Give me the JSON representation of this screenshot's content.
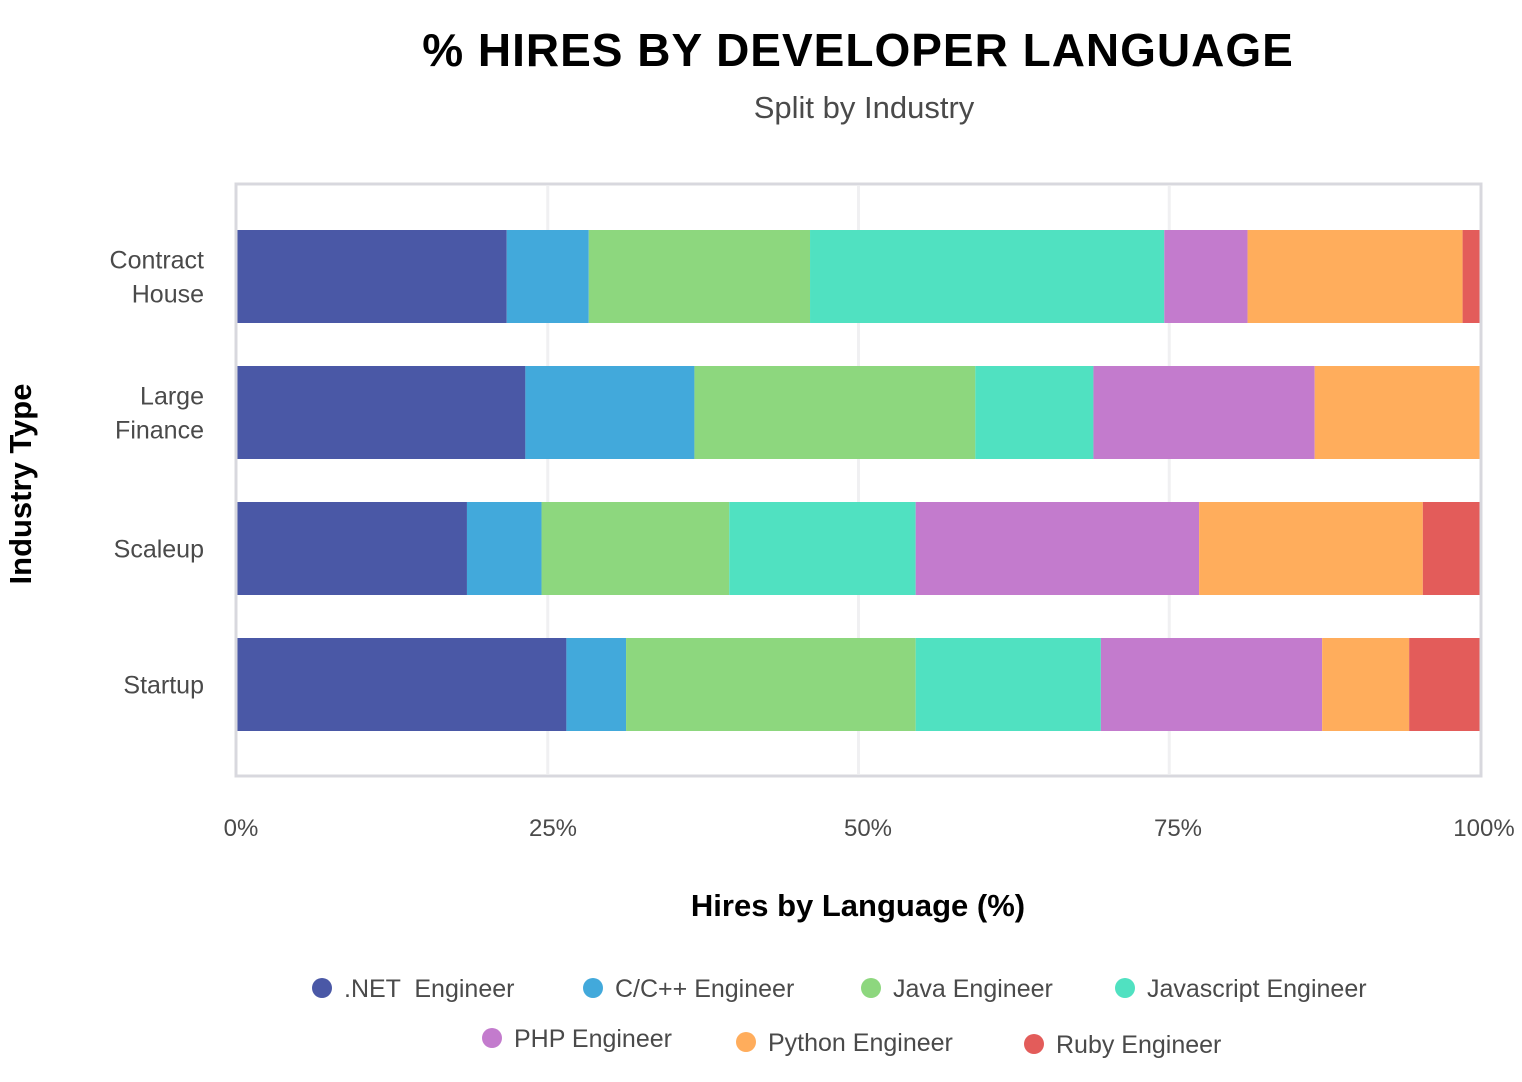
{
  "chart_data": {
    "type": "bar",
    "orientation": "horizontal",
    "stacked": true,
    "title": "% HIRES BY DEVELOPER LANGUAGE",
    "subtitle": "Split by Industry",
    "xlabel": "Hires by Language (%)",
    "ylabel": "Industry Type",
    "xlim": [
      0,
      100
    ],
    "x_ticks": [
      "0%",
      "25%",
      "50%",
      "75%",
      "100%"
    ],
    "categories": [
      [
        "Contract",
        "House"
      ],
      [
        "Large",
        "Finance"
      ],
      [
        "Scaleup"
      ],
      [
        "Startup"
      ]
    ],
    "series": [
      {
        "name": ".NET  Engineer",
        "color": "#4a58a6",
        "values": [
          21.7,
          23.2,
          18.5,
          26.5
        ]
      },
      {
        "name": "C/C++ Engineer",
        "color": "#42a9db",
        "values": [
          6.6,
          13.6,
          6.0,
          4.8
        ]
      },
      {
        "name": "Java Engineer",
        "color": "#8dd77e",
        "values": [
          17.8,
          22.6,
          15.1,
          23.3
        ]
      },
      {
        "name": "Javascript Engineer",
        "color": "#50e1c1",
        "values": [
          28.5,
          9.5,
          15.0,
          14.9
        ]
      },
      {
        "name": "PHP Engineer",
        "color": "#c37bcd",
        "values": [
          6.7,
          17.8,
          22.8,
          17.8
        ]
      },
      {
        "name": "Python Engineer",
        "color": "#ffad5c",
        "values": [
          17.3,
          13.3,
          18.0,
          7.0
        ]
      },
      {
        "name": "Ruby Engineer",
        "color": "#e35c5a",
        "values": [
          1.4,
          0.0,
          4.6,
          5.7
        ]
      }
    ],
    "grid": true,
    "legend": "bottom"
  }
}
